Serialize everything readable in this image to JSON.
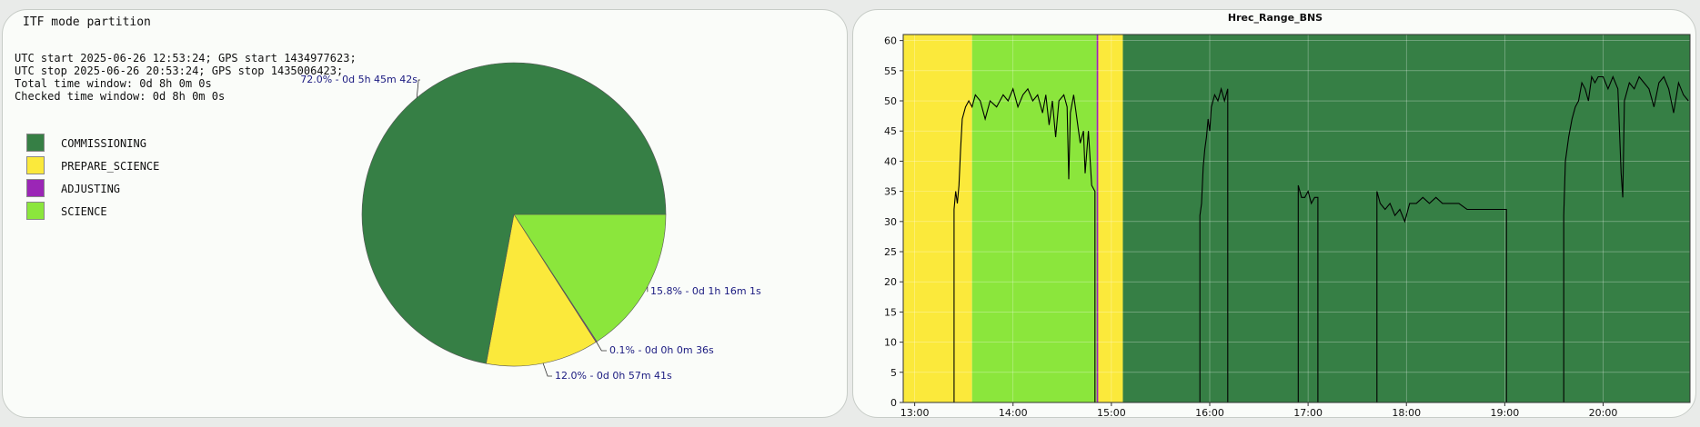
{
  "left": {
    "title": "ITF mode partition",
    "info": [
      "UTC start 2025-06-26 12:53:24; GPS start 1434977623;",
      "UTC stop 2025-06-26 20:53:24; GPS stop 1435006423;",
      "Total time window: 0d 8h 0m 0s",
      "Checked time window: 0d 8h 0m 0s"
    ],
    "legend": [
      {
        "label": "COMMISSIONING",
        "color": "#367f45"
      },
      {
        "label": "PREPARE_SCIENCE",
        "color": "#fbe93b"
      },
      {
        "label": "ADJUSTING",
        "color": "#9b26b6"
      },
      {
        "label": "SCIENCE",
        "color": "#8be63c"
      }
    ]
  },
  "chart_data": [
    {
      "type": "pie",
      "slices": [
        {
          "name": "SCIENCE",
          "value": 15.8,
          "color": "#8be63c",
          "label": "15.8% - 0d 1h 16m 1s"
        },
        {
          "name": "ADJUSTING",
          "value": 0.1,
          "color": "#9b26b6",
          "label": "0.1% - 0d 0h 0m 36s"
        },
        {
          "name": "PREPARE_SCIENCE",
          "value": 12.0,
          "color": "#fbe93b",
          "label": "12.0% - 0d 0h 57m 41s"
        },
        {
          "name": "COMMISSIONING",
          "value": 72.0,
          "color": "#367f45",
          "label": "72.0% - 0d 5h 45m 42s"
        }
      ]
    },
    {
      "type": "line",
      "title": "Hrec_Range_BNS",
      "xlabel": "",
      "ylabel": "",
      "ylim": [
        0,
        61
      ],
      "xlim": [
        "12:53",
        "20:53"
      ],
      "yticks": [
        0,
        5,
        10,
        15,
        20,
        25,
        30,
        35,
        40,
        45,
        50,
        55,
        60
      ],
      "xticks": [
        "13:00",
        "14:00",
        "15:00",
        "16:00",
        "17:00",
        "18:00",
        "19:00",
        "20:00"
      ],
      "grid": true,
      "background_segments": [
        {
          "start": "12:53",
          "end": "13:35",
          "mode": "PREPARE_SCIENCE",
          "color": "#fbe93b"
        },
        {
          "start": "13:35",
          "end": "14:51",
          "mode": "SCIENCE",
          "color": "#8be63c"
        },
        {
          "start": "14:51",
          "end": "14:52",
          "mode": "ADJUSTING",
          "color": "#9b26b6"
        },
        {
          "start": "14:52",
          "end": "15:07",
          "mode": "PREPARE_SCIENCE",
          "color": "#fbe93b"
        },
        {
          "start": "15:07",
          "end": "20:53",
          "mode": "COMMISSIONING",
          "color": "#367f45"
        }
      ],
      "series": [
        {
          "color": "#000000",
          "points": [
            [
              "12:53",
              0
            ],
            [
              "13:24",
              0
            ],
            [
              "13:24",
              32
            ],
            [
              "13:25",
              35
            ],
            [
              "13:26",
              33
            ],
            [
              "13:27",
              36
            ],
            [
              "13:28",
              42
            ],
            [
              "13:29",
              47
            ],
            [
              "13:31",
              49
            ],
            [
              "13:33",
              50
            ],
            [
              "13:35",
              49
            ],
            [
              "13:37",
              51
            ],
            [
              "13:40",
              50
            ],
            [
              "13:43",
              47
            ],
            [
              "13:46",
              50
            ],
            [
              "13:50",
              49
            ],
            [
              "13:54",
              51
            ],
            [
              "13:57",
              50
            ],
            [
              "14:00",
              52
            ],
            [
              "14:03",
              49
            ],
            [
              "14:06",
              51
            ],
            [
              "14:09",
              52
            ],
            [
              "14:12",
              50
            ],
            [
              "14:15",
              51
            ],
            [
              "14:18",
              48
            ],
            [
              "14:20",
              51
            ],
            [
              "14:22",
              46
            ],
            [
              "14:24",
              50
            ],
            [
              "14:26",
              44
            ],
            [
              "14:28",
              50
            ],
            [
              "14:31",
              51
            ],
            [
              "14:33",
              49
            ],
            [
              "14:34",
              37
            ],
            [
              "14:35",
              48
            ],
            [
              "14:37",
              51
            ],
            [
              "14:39",
              47
            ],
            [
              "14:41",
              43
            ],
            [
              "14:43",
              45
            ],
            [
              "14:44",
              38
            ],
            [
              "14:46",
              45
            ],
            [
              "14:48",
              36
            ],
            [
              "14:50",
              35
            ],
            [
              "14:50",
              0
            ],
            [
              "15:54",
              0
            ],
            [
              "15:54",
              31
            ],
            [
              "15:55",
              33
            ],
            [
              "15:56",
              39
            ],
            [
              "15:57",
              42
            ],
            [
              "15:58",
              44
            ],
            [
              "15:59",
              47
            ],
            [
              "16:00",
              45
            ],
            [
              "16:01",
              49
            ],
            [
              "16:03",
              51
            ],
            [
              "16:05",
              50
            ],
            [
              "16:07",
              52
            ],
            [
              "16:09",
              50
            ],
            [
              "16:11",
              52
            ],
            [
              "16:11",
              0
            ],
            [
              "16:54",
              0
            ],
            [
              "16:54",
              36
            ],
            [
              "16:56",
              34
            ],
            [
              "16:58",
              34
            ],
            [
              "17:00",
              35
            ],
            [
              "17:02",
              33
            ],
            [
              "17:04",
              34
            ],
            [
              "17:06",
              34
            ],
            [
              "17:06",
              0
            ],
            [
              "17:42",
              0
            ],
            [
              "17:42",
              35
            ],
            [
              "17:44",
              33
            ],
            [
              "17:47",
              32
            ],
            [
              "17:50",
              33
            ],
            [
              "17:53",
              31
            ],
            [
              "17:56",
              32
            ],
            [
              "17:59",
              30
            ],
            [
              "18:02",
              33
            ],
            [
              "18:06",
              33
            ],
            [
              "18:10",
              34
            ],
            [
              "18:14",
              33
            ],
            [
              "18:18",
              34
            ],
            [
              "18:22",
              33
            ],
            [
              "18:27",
              33
            ],
            [
              "18:32",
              33
            ],
            [
              "18:37",
              32
            ],
            [
              "18:42",
              32
            ],
            [
              "18:47",
              32
            ],
            [
              "18:52",
              32
            ],
            [
              "18:57",
              32
            ],
            [
              "19:01",
              32
            ],
            [
              "19:01",
              0
            ],
            [
              "19:36",
              0
            ],
            [
              "19:36",
              31
            ],
            [
              "19:37",
              40
            ],
            [
              "19:39",
              44
            ],
            [
              "19:41",
              47
            ],
            [
              "19:43",
              49
            ],
            [
              "19:45",
              50
            ],
            [
              "19:47",
              53
            ],
            [
              "19:49",
              52
            ],
            [
              "19:51",
              50
            ],
            [
              "19:53",
              54
            ],
            [
              "19:55",
              53
            ],
            [
              "19:57",
              54
            ],
            [
              "20:00",
              54
            ],
            [
              "20:03",
              52
            ],
            [
              "20:06",
              54
            ],
            [
              "20:09",
              52
            ],
            [
              "20:11",
              38
            ],
            [
              "20:12",
              34
            ],
            [
              "20:13",
              50
            ],
            [
              "20:16",
              53
            ],
            [
              "20:19",
              52
            ],
            [
              "20:22",
              54
            ],
            [
              "20:25",
              53
            ],
            [
              "20:28",
              52
            ],
            [
              "20:31",
              49
            ],
            [
              "20:34",
              53
            ],
            [
              "20:37",
              54
            ],
            [
              "20:40",
              52
            ],
            [
              "20:43",
              48
            ],
            [
              "20:46",
              53
            ],
            [
              "20:49",
              51
            ],
            [
              "20:52",
              50
            ]
          ]
        }
      ]
    }
  ]
}
